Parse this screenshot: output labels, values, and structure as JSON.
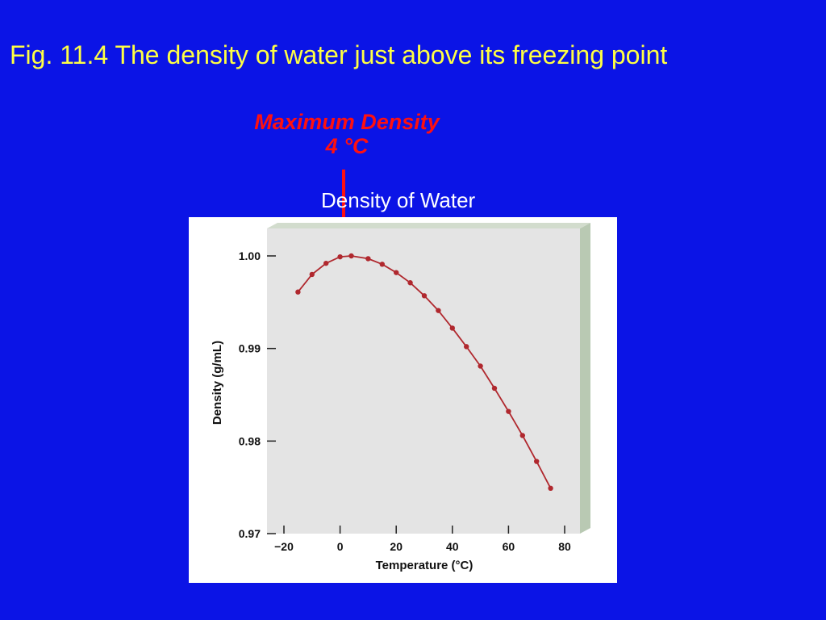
{
  "slide": {
    "title": "Fig. 11.4  The density of water just above its freezing point",
    "annotation_line1": "Maximum Density",
    "annotation_line2": "4 °C",
    "chart_caption": "Density of Water"
  },
  "colors": {
    "background": "#0b14e6",
    "title": "#ffff44",
    "annotation": "#ff1010",
    "caption": "#ffffff",
    "series": "#b0282e",
    "plot_area": "#e4e4e4"
  },
  "icons": {
    "annotation_arrow": "down-arrow-icon"
  },
  "chart_data": {
    "type": "line",
    "title": "",
    "xlabel": "Temperature (°C)",
    "ylabel": "Density (g/mL)",
    "xlim": [
      -20,
      80
    ],
    "ylim": [
      0.97,
      1.0
    ],
    "x_ticks": [
      -20,
      0,
      20,
      40,
      60,
      80
    ],
    "x_tick_labels": [
      "−20",
      "0",
      "20",
      "40",
      "60",
      "80"
    ],
    "y_ticks": [
      0.97,
      0.98,
      0.99,
      1.0
    ],
    "y_tick_labels": [
      "0.97",
      "0.98",
      "0.99",
      "1.00"
    ],
    "grid": false,
    "markers": true,
    "series": [
      {
        "x": [
          -15,
          -10,
          -5,
          0,
          4,
          10,
          15,
          20,
          25,
          30,
          35,
          40,
          45,
          50,
          55,
          60,
          65,
          70,
          75
        ],
        "values": [
          0.9961,
          0.998,
          0.9992,
          0.9999,
          1.0,
          0.9997,
          0.9991,
          0.9982,
          0.9971,
          0.9957,
          0.9941,
          0.9922,
          0.9902,
          0.9881,
          0.9857,
          0.9832,
          0.9806,
          0.9778,
          0.9749
        ]
      }
    ]
  }
}
